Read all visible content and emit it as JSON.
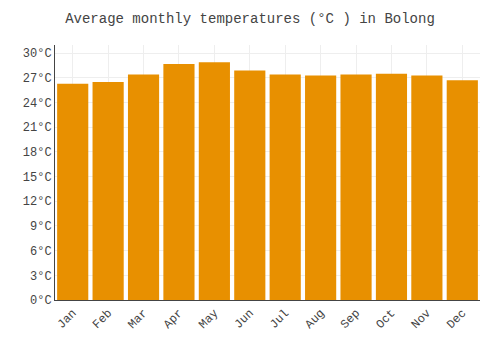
{
  "chart_data": {
    "type": "bar",
    "title": "Average monthly temperatures (°C ) in Bolong",
    "categories": [
      "Jan",
      "Feb",
      "Mar",
      "Apr",
      "May",
      "Jun",
      "Jul",
      "Aug",
      "Sep",
      "Oct",
      "Nov",
      "Dec"
    ],
    "values": [
      26.3,
      26.5,
      27.4,
      28.7,
      28.9,
      27.9,
      27.4,
      27.3,
      27.4,
      27.5,
      27.3,
      26.7
    ],
    "color": "#E89000",
    "ylim": [
      0,
      31
    ],
    "yticks": [
      {
        "value": 0,
        "label": "0°C"
      },
      {
        "value": 3,
        "label": "3°C"
      },
      {
        "value": 6,
        "label": "6°C"
      },
      {
        "value": 9,
        "label": "9°C"
      },
      {
        "value": 12,
        "label": "12°C"
      },
      {
        "value": 15,
        "label": "15°C"
      },
      {
        "value": 18,
        "label": "18°C"
      },
      {
        "value": 21,
        "label": "21°C"
      },
      {
        "value": 24,
        "label": "24°C"
      },
      {
        "value": 27,
        "label": "27°C"
      },
      {
        "value": 30,
        "label": "30°C"
      }
    ],
    "grid": true
  }
}
